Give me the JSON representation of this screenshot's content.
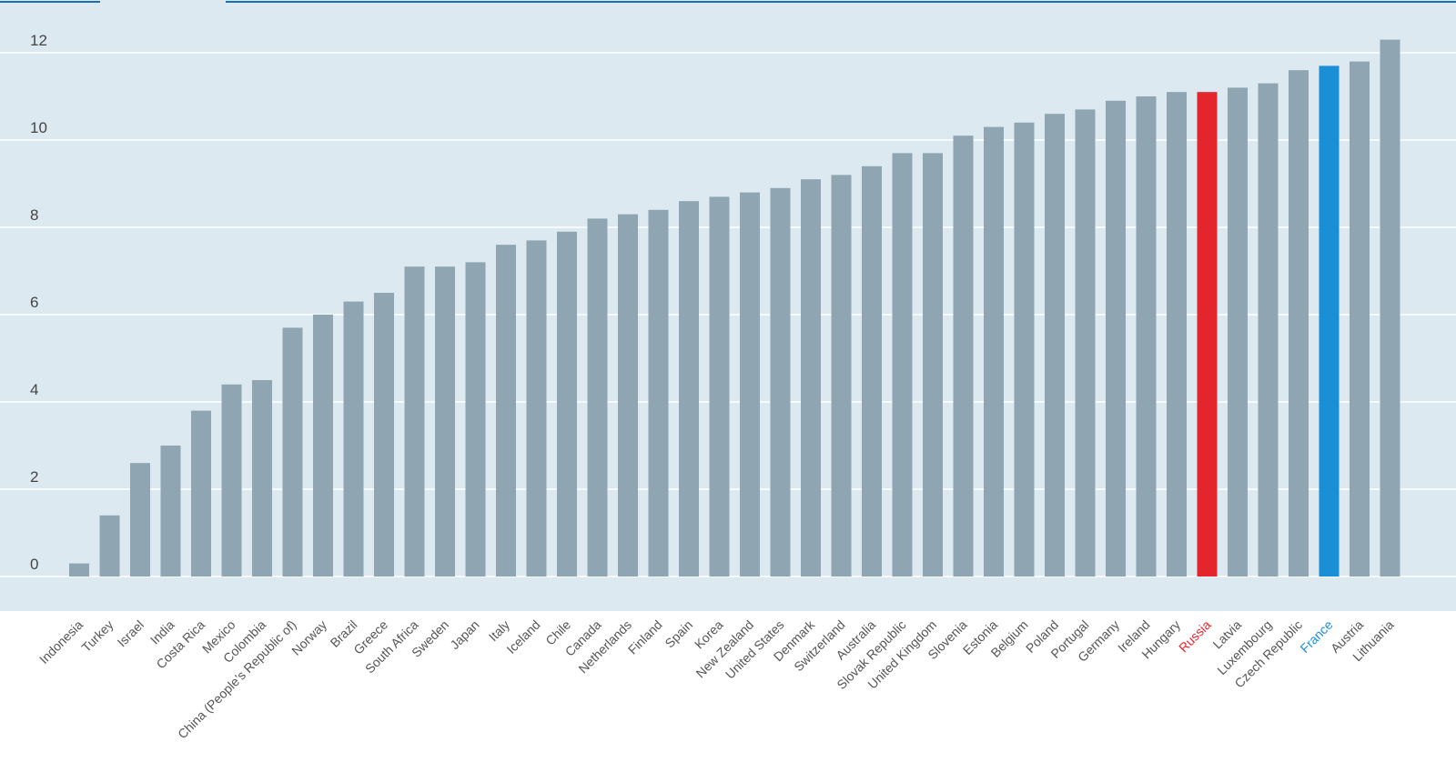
{
  "chart_data": {
    "type": "bar",
    "title": "",
    "xlabel": "",
    "ylabel": "",
    "ylim": [
      0,
      12.8
    ],
    "yticks": [
      0,
      2,
      4,
      6,
      8,
      10,
      12
    ],
    "grid": true,
    "legend": "none",
    "categories": [
      "Indonesia",
      "Turkey",
      "Israel",
      "India",
      "Costa Rica",
      "Mexico",
      "Colombia",
      "China (People’s Republic of)",
      "Norway",
      "Brazil",
      "Greece",
      "South Africa",
      "Sweden",
      "Japan",
      "Italy",
      "Iceland",
      "Chile",
      "Canada",
      "Netherlands",
      "Finland",
      "Spain",
      "Korea",
      "New Zealand",
      "United States",
      "Denmark",
      "Switzerland",
      "Australia",
      "Slovak Republic",
      "United Kingdom",
      "Slovenia",
      "Estonia",
      "Belgium",
      "Poland",
      "Portugal",
      "Germany",
      "Ireland",
      "Hungary",
      "Russia",
      "Latvia",
      "Luxembourg",
      "Czech Republic",
      "France",
      "Austria",
      "Lithuania"
    ],
    "values": [
      0.3,
      1.4,
      2.6,
      3.0,
      3.8,
      4.4,
      4.5,
      5.7,
      6.0,
      6.3,
      6.5,
      7.1,
      7.1,
      7.2,
      7.6,
      7.7,
      7.9,
      8.2,
      8.3,
      8.4,
      8.6,
      8.7,
      8.8,
      8.9,
      9.1,
      9.2,
      9.4,
      9.7,
      9.7,
      10.1,
      10.3,
      10.4,
      10.6,
      10.7,
      10.9,
      11.0,
      11.1,
      11.1,
      11.2,
      11.3,
      11.6,
      11.7,
      11.8,
      12.3
    ],
    "highlights": {
      "Russia": "#e3262e",
      "France": "#1a8fd6"
    }
  },
  "colors": {
    "plot_background": "#dde9f1",
    "gridline": "#ffffff",
    "bar_default": "#8fa5b2",
    "tick_label": "#444444",
    "category_label": "#555555",
    "top_rule": "#1a6faf"
  }
}
